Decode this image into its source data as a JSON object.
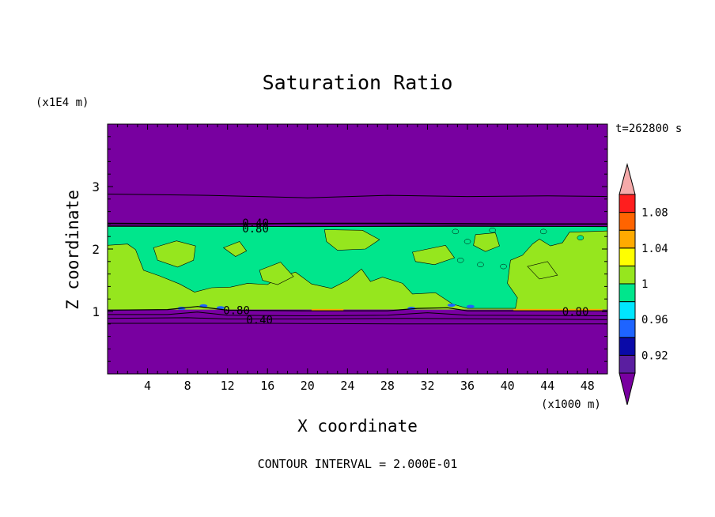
{
  "chart_data": {
    "type": "heatmap",
    "title": "Saturation Ratio",
    "xlabel": "X coordinate",
    "ylabel": "Z coordinate",
    "x_units": "(x1000 m)",
    "y_units": "(x1E4 m)",
    "time_label": "t=262800 s",
    "footer": "CONTOUR INTERVAL = 2.000E-01",
    "xlim": [
      0,
      50
    ],
    "ylim": [
      0,
      4
    ],
    "x_ticks": [
      4,
      8,
      12,
      16,
      20,
      24,
      28,
      32,
      36,
      40,
      44,
      48
    ],
    "y_ticks": [
      1,
      2,
      3
    ],
    "colorbar": {
      "levels": [
        0.9,
        0.92,
        0.94,
        0.96,
        0.98,
        1.0,
        1.02,
        1.04,
        1.06,
        1.08,
        1.1
      ],
      "colors": [
        "#5a1ea0",
        "#0a0aa8",
        "#1e64ff",
        "#00e6ff",
        "#00e68c",
        "#96e61e",
        "#ffff00",
        "#ffaa00",
        "#ff6400",
        "#ff1e1e"
      ],
      "under_color": "#7800a0",
      "over_color": "#f5aaaa",
      "tick_labels": [
        "0.92",
        "0.96",
        "1",
        "1.04",
        "1.08"
      ],
      "tick_values": [
        0.92,
        0.96,
        1.0,
        1.04,
        1.08
      ]
    },
    "regions": {
      "background_color": "#7800a0",
      "moist_layer": {
        "z_bottom": 1.03,
        "z_top": 2.36,
        "color": "#96e61e",
        "x_range": [
          0,
          50
        ]
      },
      "saturated_patches_color": "#00e68c"
    },
    "contour_labels": [
      {
        "text": "0.40",
        "x": 14.8,
        "z": 2.42
      },
      {
        "text": "0.80",
        "x": 14.8,
        "z": 2.33
      },
      {
        "text": "0.80",
        "x": 12.9,
        "z": 1.02
      },
      {
        "text": "0.40",
        "x": 15.2,
        "z": 0.87
      },
      {
        "text": "0.80",
        "x": 46.8,
        "z": 1.0
      }
    ]
  }
}
